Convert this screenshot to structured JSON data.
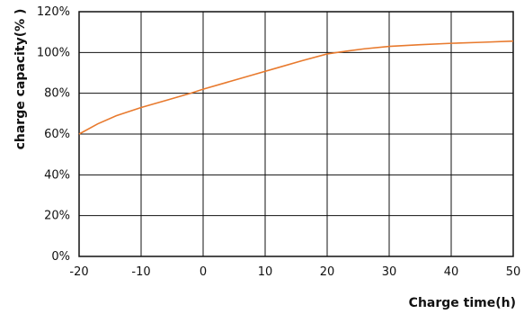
{
  "chart_data": {
    "type": "line",
    "title": "",
    "xlabel": "Charge time(h)",
    "ylabel": "charge capacity(% )",
    "xlim": [
      -20,
      50
    ],
    "ylim": [
      0,
      120
    ],
    "x_ticks": [
      "-20",
      "-10",
      "0",
      "10",
      "20",
      "30",
      "40",
      "50"
    ],
    "y_ticks": [
      "0%",
      "20%",
      "40%",
      "60%",
      "80%",
      "100%",
      "120%"
    ],
    "grid": true,
    "legend": "none",
    "series_color": "#e87a2e",
    "series": [
      {
        "x": [
          -20,
          -17,
          -14,
          -10,
          -6,
          -2,
          0,
          4,
          8,
          12,
          16,
          20,
          23,
          26,
          30,
          35,
          40,
          45,
          50
        ],
        "y": [
          60,
          65,
          69,
          73,
          76.5,
          80,
          82,
          85.5,
          89,
          92.5,
          96,
          99.3,
          100.6,
          101.8,
          103,
          103.8,
          104.5,
          105,
          105.6
        ]
      }
    ]
  }
}
